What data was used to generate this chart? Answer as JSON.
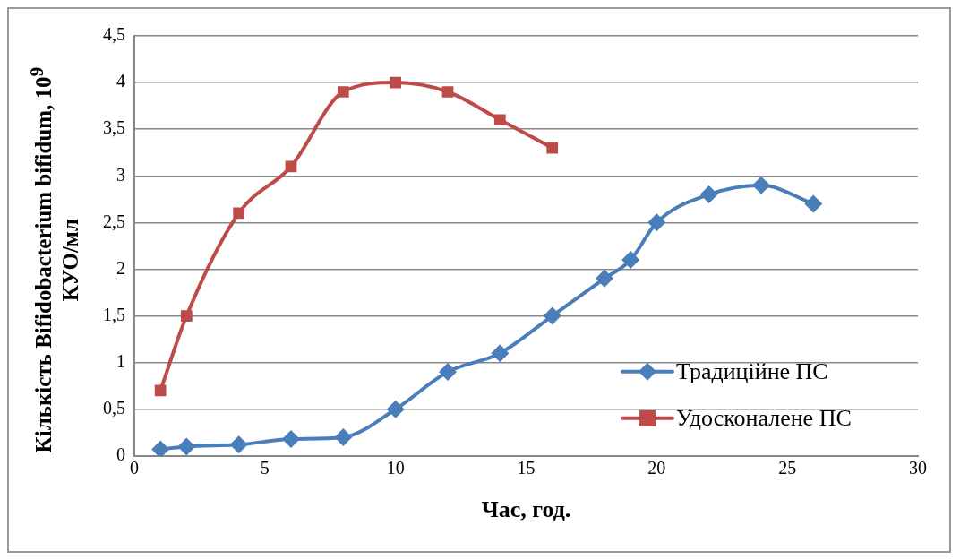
{
  "chart_data": {
    "type": "line",
    "xlabel": "Час, год.",
    "ylabel": "Кількість Bifidobacterium bifidum, 10$^{9}$ КУО/мл",
    "xlim": [
      0,
      30
    ],
    "xticks": [
      0,
      5,
      10,
      15,
      20,
      25,
      30
    ],
    "ylim": [
      0,
      4.5
    ],
    "yticks": [
      0,
      {
        "value": 0.5,
        "label": "0,5"
      },
      1,
      {
        "value": 1.5,
        "label": "1,5"
      },
      2,
      {
        "value": 2.5,
        "label": "2,5"
      },
      3,
      {
        "value": 3.5,
        "label": "3,5"
      },
      4,
      {
        "value": 4.5,
        "label": "4,5"
      }
    ],
    "grid": "y",
    "legend": "bottom right",
    "series": [
      {
        "name": "Традиційне ПС",
        "color": "#4a7ebb",
        "marker": "diamond",
        "x": [
          1,
          2,
          4,
          6,
          8,
          10,
          12,
          14,
          16,
          18,
          19,
          20,
          22,
          24,
          26
        ],
        "values": [
          0.07,
          0.1,
          0.12,
          0.18,
          0.2,
          0.5,
          0.9,
          1.1,
          1.5,
          1.9,
          2.1,
          2.5,
          2.8,
          2.9,
          2.7
        ]
      },
      {
        "name": "Удосконалене ПС",
        "color": "#be4b48",
        "marker": "square",
        "x": [
          1,
          2,
          4,
          6,
          8,
          10,
          12,
          14,
          16
        ],
        "values": [
          0.7,
          1.5,
          2.6,
          3.1,
          3.9,
          4.0,
          3.9,
          3.6,
          3.3
        ]
      }
    ]
  }
}
